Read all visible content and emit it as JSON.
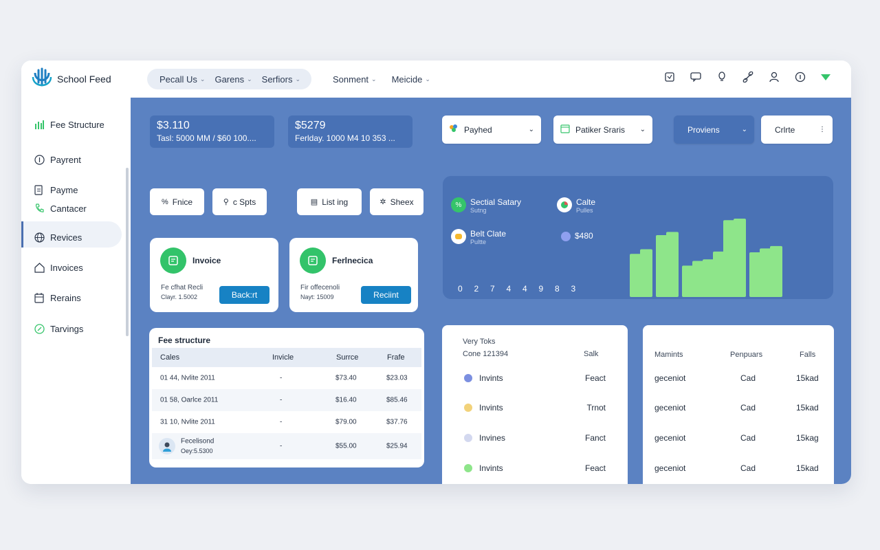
{
  "app": {
    "name": "School Feed"
  },
  "nav": {
    "pill_items": [
      "Pecall Us",
      "Garens",
      "Serfiors"
    ],
    "plain_items": [
      "Sonment",
      "Meicide"
    ]
  },
  "top_icons": [
    "window-icon",
    "message-icon",
    "bulb-icon",
    "link-icon",
    "user-icon",
    "info-icon",
    "status-arrow-icon"
  ],
  "sidebar": {
    "items": [
      {
        "label": "Fee Structure",
        "icon": "bar-chart-icon"
      },
      {
        "label": "Payrent",
        "icon": "info-circle-icon"
      },
      {
        "label": "Payme",
        "icon": "document-icon"
      },
      {
        "label": "Cantacer",
        "icon": "phone-icon"
      },
      {
        "label": "Revices",
        "icon": "globe-icon"
      },
      {
        "label": "Invoices",
        "icon": "home-icon"
      },
      {
        "label": "Rerains",
        "icon": "calendar-icon"
      },
      {
        "label": "Tarvings",
        "icon": "compass-icon"
      }
    ],
    "active_index": 4
  },
  "stats": [
    {
      "value": "$3.110",
      "sub": "Tasl: 5000 MM / $60 100...."
    },
    {
      "value": "$5279",
      "sub": "Ferlday. 1000 M4 10 353 ..."
    }
  ],
  "dropdowns": [
    {
      "label": "Payhed"
    },
    {
      "label": "Patiker Sraris"
    },
    {
      "label": "Proviens"
    },
    {
      "label": "Crlrte"
    }
  ],
  "chips": [
    {
      "label": "Fnice"
    },
    {
      "label": "c Spts"
    },
    {
      "label": "List ing"
    },
    {
      "label": "Sheex"
    }
  ],
  "cards": [
    {
      "title": "Invoice",
      "line1": "Fe cfhat Recli",
      "line2": "Clayr. 1.5002",
      "button": "Back:rt"
    },
    {
      "title": "Ferlnecica",
      "line1": "Fir offecenoli",
      "line2": "Nayt: 15009",
      "button": "Reciint"
    }
  ],
  "fee_table": {
    "title": "Fee structure",
    "headers": [
      "Cales",
      "Invicle",
      "Surrce",
      "Frafe"
    ],
    "rows": [
      {
        "c1": "01 44, Nvlite 2011",
        "c2": "-",
        "c3": "$73.40",
        "c4": "$23.03"
      },
      {
        "c1": "01 58, Oarlce 2011",
        "c2": "-",
        "c3": "$16.40",
        "c4": "$85.46"
      },
      {
        "c1": "31 10, Nvlite 2011",
        "c2": "-",
        "c3": "$79.00",
        "c4": "$37.76"
      },
      {
        "c1": "Fecelisond",
        "c1b": "Oey:5.5300",
        "c2": "-",
        "c3": "$55.00",
        "c4": "$25.94"
      }
    ]
  },
  "chart_data": {
    "type": "bar",
    "legend": [
      {
        "name": "Sectial Satary",
        "sub": "Sutng"
      },
      {
        "name": "Calte",
        "sub": "Pulles"
      },
      {
        "name": "Belt Clate",
        "sub": "Pultte"
      },
      {
        "name": "$480",
        "sub": ""
      }
    ],
    "x_ticks": [
      "0",
      "2",
      "7",
      "4",
      "4",
      "9",
      "8",
      "3"
    ],
    "values": [
      0.55,
      0.61,
      0,
      0.79,
      0.83,
      0,
      0.4,
      0.46,
      0.48,
      0.58,
      0.98,
      1.0,
      0,
      0.57,
      0.62,
      0.65
    ],
    "color": "#8ee58a"
  },
  "list_panel": {
    "header1": "Very Toks",
    "header2": "Cone 121394",
    "header3": "Salk",
    "rows": [
      {
        "name": "Invints",
        "value": "Feact",
        "color": "#7b8fe0"
      },
      {
        "name": "Invints",
        "value": "Trnot",
        "color": "#f2d27a"
      },
      {
        "name": "Invines",
        "value": "Fanct",
        "color": "#d3d8ef"
      },
      {
        "name": "Invints",
        "value": "Feact",
        "color": "#8ee58a"
      }
    ]
  },
  "grid_panel": {
    "headers": [
      "Mamints",
      "Penpuars",
      "Falls"
    ],
    "rows": [
      {
        "a": "geceniot",
        "b": "Cad",
        "c": "15kad"
      },
      {
        "a": "geceniot",
        "b": "Cad",
        "c": "15kad"
      },
      {
        "a": "geceniot",
        "b": "Cad",
        "c": "15kag"
      },
      {
        "a": "geceniot",
        "b": "Cad",
        "c": "15kad"
      }
    ]
  }
}
